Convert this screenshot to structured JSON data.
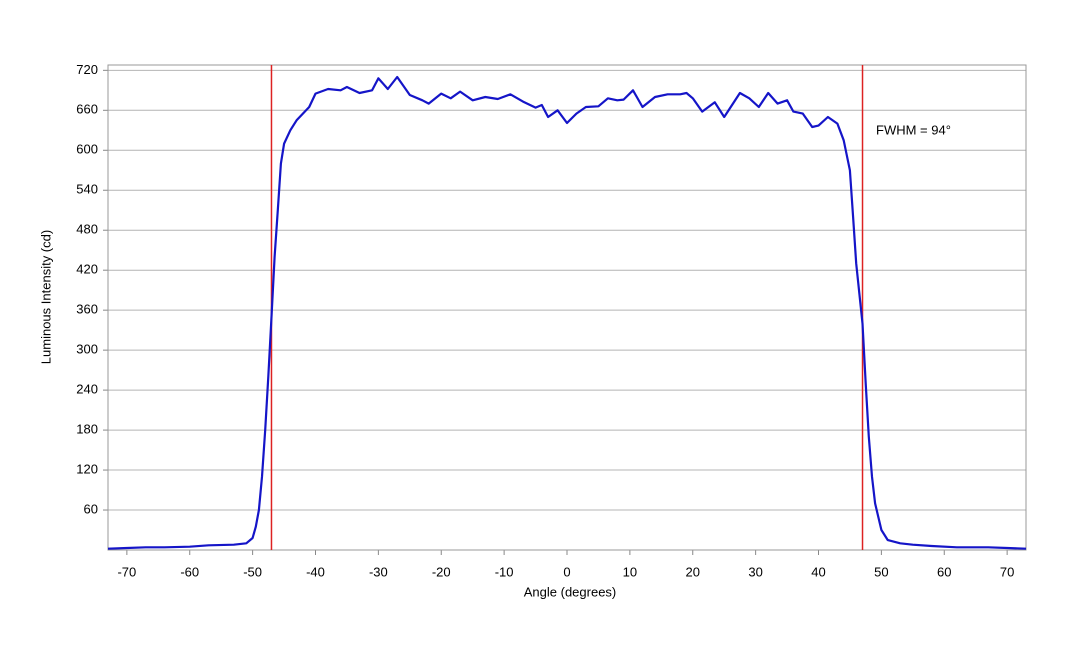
{
  "chart_data": {
    "type": "line",
    "x_label": "Angle (degrees)",
    "y_label": "Luminous Intensity (cd)",
    "annotation": "FWHM = 94°",
    "xlim": [
      -73,
      73
    ],
    "xticks": [
      -70,
      -60,
      -50,
      -40,
      -30,
      -20,
      -10,
      0,
      10,
      20,
      30,
      40,
      50,
      60,
      70
    ],
    "ylim": [
      0,
      728
    ],
    "yticks": [
      60,
      120,
      180,
      240,
      300,
      360,
      420,
      480,
      540,
      600,
      660,
      720
    ],
    "grid": true,
    "vlines": [
      -47,
      47
    ],
    "vline_color": "#dd2222",
    "series": [
      {
        "color": "#1515c8",
        "x": [
          -73,
          -70,
          -67,
          -64,
          -60,
          -57,
          -53,
          -51,
          -50,
          -49.5,
          -49,
          -48.5,
          -48,
          -47.5,
          -47,
          -46.5,
          -46,
          -45.5,
          -45,
          -44,
          -43,
          -42,
          -41,
          -40,
          -38,
          -36,
          -35,
          -33,
          -31,
          -30,
          -28.5,
          -27,
          -25,
          -23,
          -22,
          -20,
          -18.5,
          -17,
          -15,
          -13,
          -11,
          -9,
          -7,
          -5,
          -4,
          -3,
          -1.5,
          0,
          1.5,
          3,
          5,
          6.5,
          8,
          9,
          10.5,
          12,
          14,
          16,
          18,
          19,
          20,
          21.5,
          23.5,
          25,
          27.5,
          29,
          30.5,
          32,
          33.5,
          35,
          36,
          37.5,
          39,
          40,
          41.5,
          43,
          44,
          45,
          45.5,
          46,
          47,
          47.5,
          48,
          48.5,
          49,
          50,
          51,
          53,
          55,
          58,
          62,
          67,
          70,
          73
        ],
        "values": [
          2,
          3,
          4,
          4,
          5,
          7,
          8,
          10,
          18,
          35,
          60,
          110,
          180,
          260,
          350,
          440,
          510,
          580,
          610,
          630,
          645,
          655,
          665,
          685,
          692,
          690,
          695,
          686,
          690,
          708,
          692,
          710,
          683,
          675,
          670,
          685,
          678,
          688,
          675,
          680,
          677,
          684,
          673,
          664,
          668,
          650,
          660,
          641,
          655,
          665,
          666,
          678,
          675,
          676,
          690,
          665,
          680,
          684,
          684,
          686,
          678,
          658,
          672,
          650,
          686,
          678,
          665,
          686,
          670,
          675,
          658,
          655,
          635,
          637,
          650,
          640,
          615,
          570,
          500,
          430,
          340,
          250,
          170,
          110,
          70,
          30,
          15,
          10,
          8,
          6,
          4,
          4,
          3,
          2
        ]
      }
    ]
  }
}
